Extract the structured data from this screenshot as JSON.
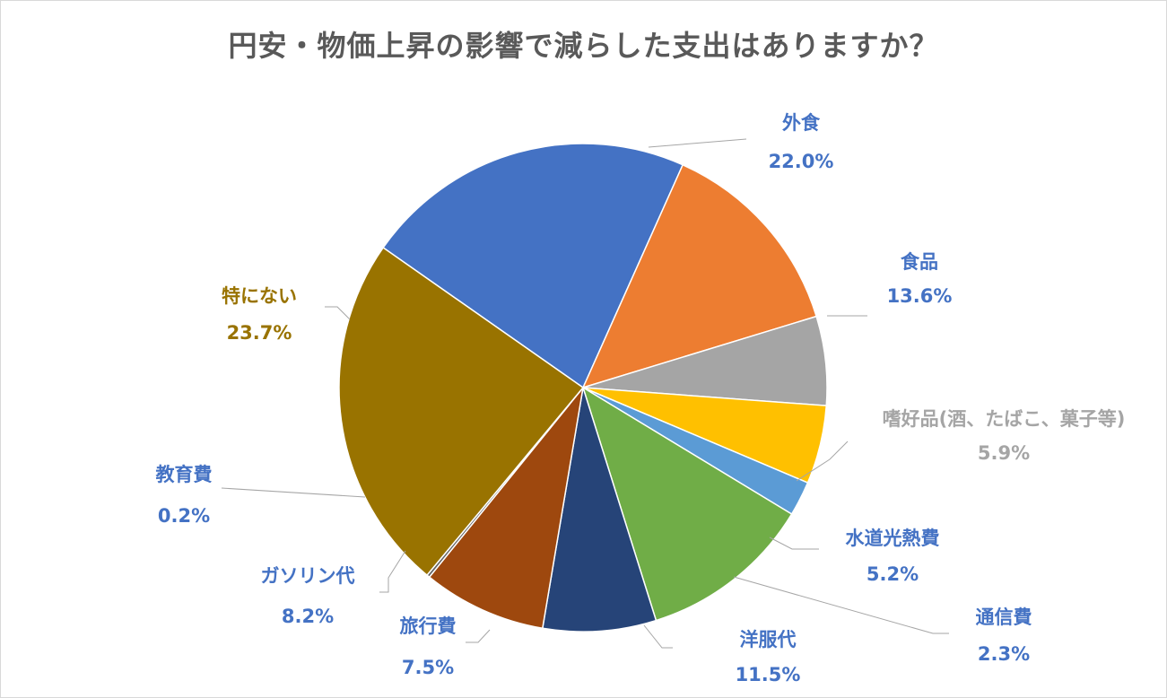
{
  "chart_data": {
    "type": "pie",
    "title": "円安・物価上昇の影響で減らした支出はありますか？",
    "slices": [
      {
        "label": "外食",
        "value": 22.0,
        "display": "22.0%",
        "color": "#4472c4",
        "label_color": "#4472c4"
      },
      {
        "label": "食品",
        "value": 13.6,
        "display": "13.6%",
        "color": "#ed7d31",
        "label_color": "#4472c4"
      },
      {
        "label": "嗜好品(酒、たばこ、菓子等)",
        "value": 5.9,
        "display": "5.9%",
        "color": "#a5a5a5",
        "label_color": "#a5a5a5"
      },
      {
        "label": "水道光熱費",
        "value": 5.2,
        "display": "5.2%",
        "color": "#ffc000",
        "label_color": "#4472c4"
      },
      {
        "label": "通信費",
        "value": 2.3,
        "display": "2.3%",
        "color": "#5b9bd5",
        "label_color": "#4472c4"
      },
      {
        "label": "洋服代",
        "value": 11.5,
        "display": "11.5%",
        "color": "#70ad47",
        "label_color": "#4472c4"
      },
      {
        "label": "旅行費",
        "value": 7.5,
        "display": "7.5%",
        "color": "#264478",
        "label_color": "#4472c4"
      },
      {
        "label": "ガソリン代",
        "value": 8.2,
        "display": "8.2%",
        "color": "#9e480e",
        "label_color": "#4472c4"
      },
      {
        "label": "教育費",
        "value": 0.2,
        "display": "0.2%",
        "color": "#636363",
        "label_color": "#4472c4"
      },
      {
        "label": "特にない",
        "value": 23.7,
        "display": "23.7%",
        "color": "#997300",
        "label_color": "#997300"
      }
    ]
  }
}
